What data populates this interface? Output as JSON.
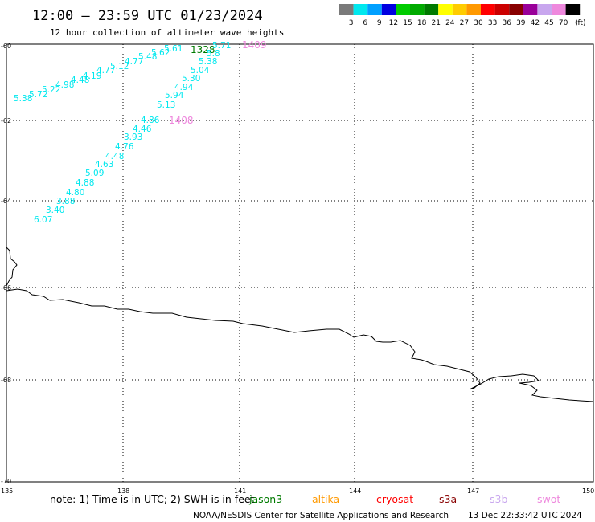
{
  "title": "12:00 – 23:59 UTC 01/23/2024",
  "subtitle": "12 hour collection of altimeter wave heights",
  "legend": {
    "unit": "(ft)",
    "items": [
      {
        "label": "3",
        "color": "#7a7a7a"
      },
      {
        "label": "6",
        "color": "#00e8ee"
      },
      {
        "label": "9",
        "color": "#00a0ff"
      },
      {
        "label": "12",
        "color": "#0000e0"
      },
      {
        "label": "15",
        "color": "#00cc00"
      },
      {
        "label": "18",
        "color": "#00aa00"
      },
      {
        "label": "21",
        "color": "#007a00"
      },
      {
        "label": "24",
        "color": "#ffff00"
      },
      {
        "label": "27",
        "color": "#ffcc00"
      },
      {
        "label": "30",
        "color": "#ff9900"
      },
      {
        "label": "33",
        "color": "#ff0000"
      },
      {
        "label": "36",
        "color": "#cc0000"
      },
      {
        "label": "39",
        "color": "#880000"
      },
      {
        "label": "42",
        "color": "#990099"
      },
      {
        "label": "45",
        "color": "#c8a6ee"
      },
      {
        "label": "70",
        "color": "#ee88dd"
      },
      {
        "label": "",
        "color": "#000000"
      }
    ]
  },
  "axes": {
    "lon_labels": [
      "135",
      "138",
      "141",
      "144",
      "147",
      "150"
    ],
    "lat_labels": [
      "-60",
      "-62",
      "-64",
      "-66",
      "-68",
      "-70"
    ]
  },
  "tracks": [
    {
      "name": "swot-1409",
      "color": "#ee88dd",
      "labels": [
        {
          "text": "1409",
          "x": 301,
          "y": 60
        }
      ]
    },
    {
      "name": "swot-1408",
      "color": "#ee88dd",
      "labels": [
        {
          "text": "1408",
          "x": 210,
          "y": 154
        }
      ]
    },
    {
      "name": "jason3-1328",
      "color": "#007a00",
      "labels": [
        {
          "text": "1328",
          "x": 237,
          "y": 66
        }
      ]
    }
  ],
  "wave_heights": {
    "color": "#00e8ee",
    "track_a": [
      "5.38",
      "5.72",
      "5.22",
      "4.98",
      "4.48",
      "4.19",
      "4.77",
      "5.12",
      "4.77",
      "5.48",
      "5.62",
      "5.61"
    ],
    "track_b": [
      "5.71",
      "5.8",
      "5.38",
      "5.04",
      "5.30",
      "4.94",
      "5.94",
      "5.13"
    ],
    "track_c": [
      "4.86",
      "4.46",
      "3.93",
      "4.76",
      "4.48",
      "4.63",
      "5.09",
      "4.88",
      "4.80",
      "3.88",
      "3.40",
      "6.07"
    ]
  },
  "note": {
    "prefix": "note:  1) Time is in UTC; 2) SWH is in feet",
    "satellites": [
      {
        "name": "jason3",
        "color": "#007a00"
      },
      {
        "name": "altika",
        "color": "#ff9900"
      },
      {
        "name": "cryosat",
        "color": "#ff0000"
      },
      {
        "name": "s3a",
        "color": "#880000"
      },
      {
        "name": "s3b",
        "color": "#c8a6ee"
      },
      {
        "name": "swot",
        "color": "#ee88dd"
      }
    ]
  },
  "credit": "NOAA/NESDIS Center for Satellite Applications and Research",
  "timestamp": "13 Dec 22:33:42 UTC 2024"
}
